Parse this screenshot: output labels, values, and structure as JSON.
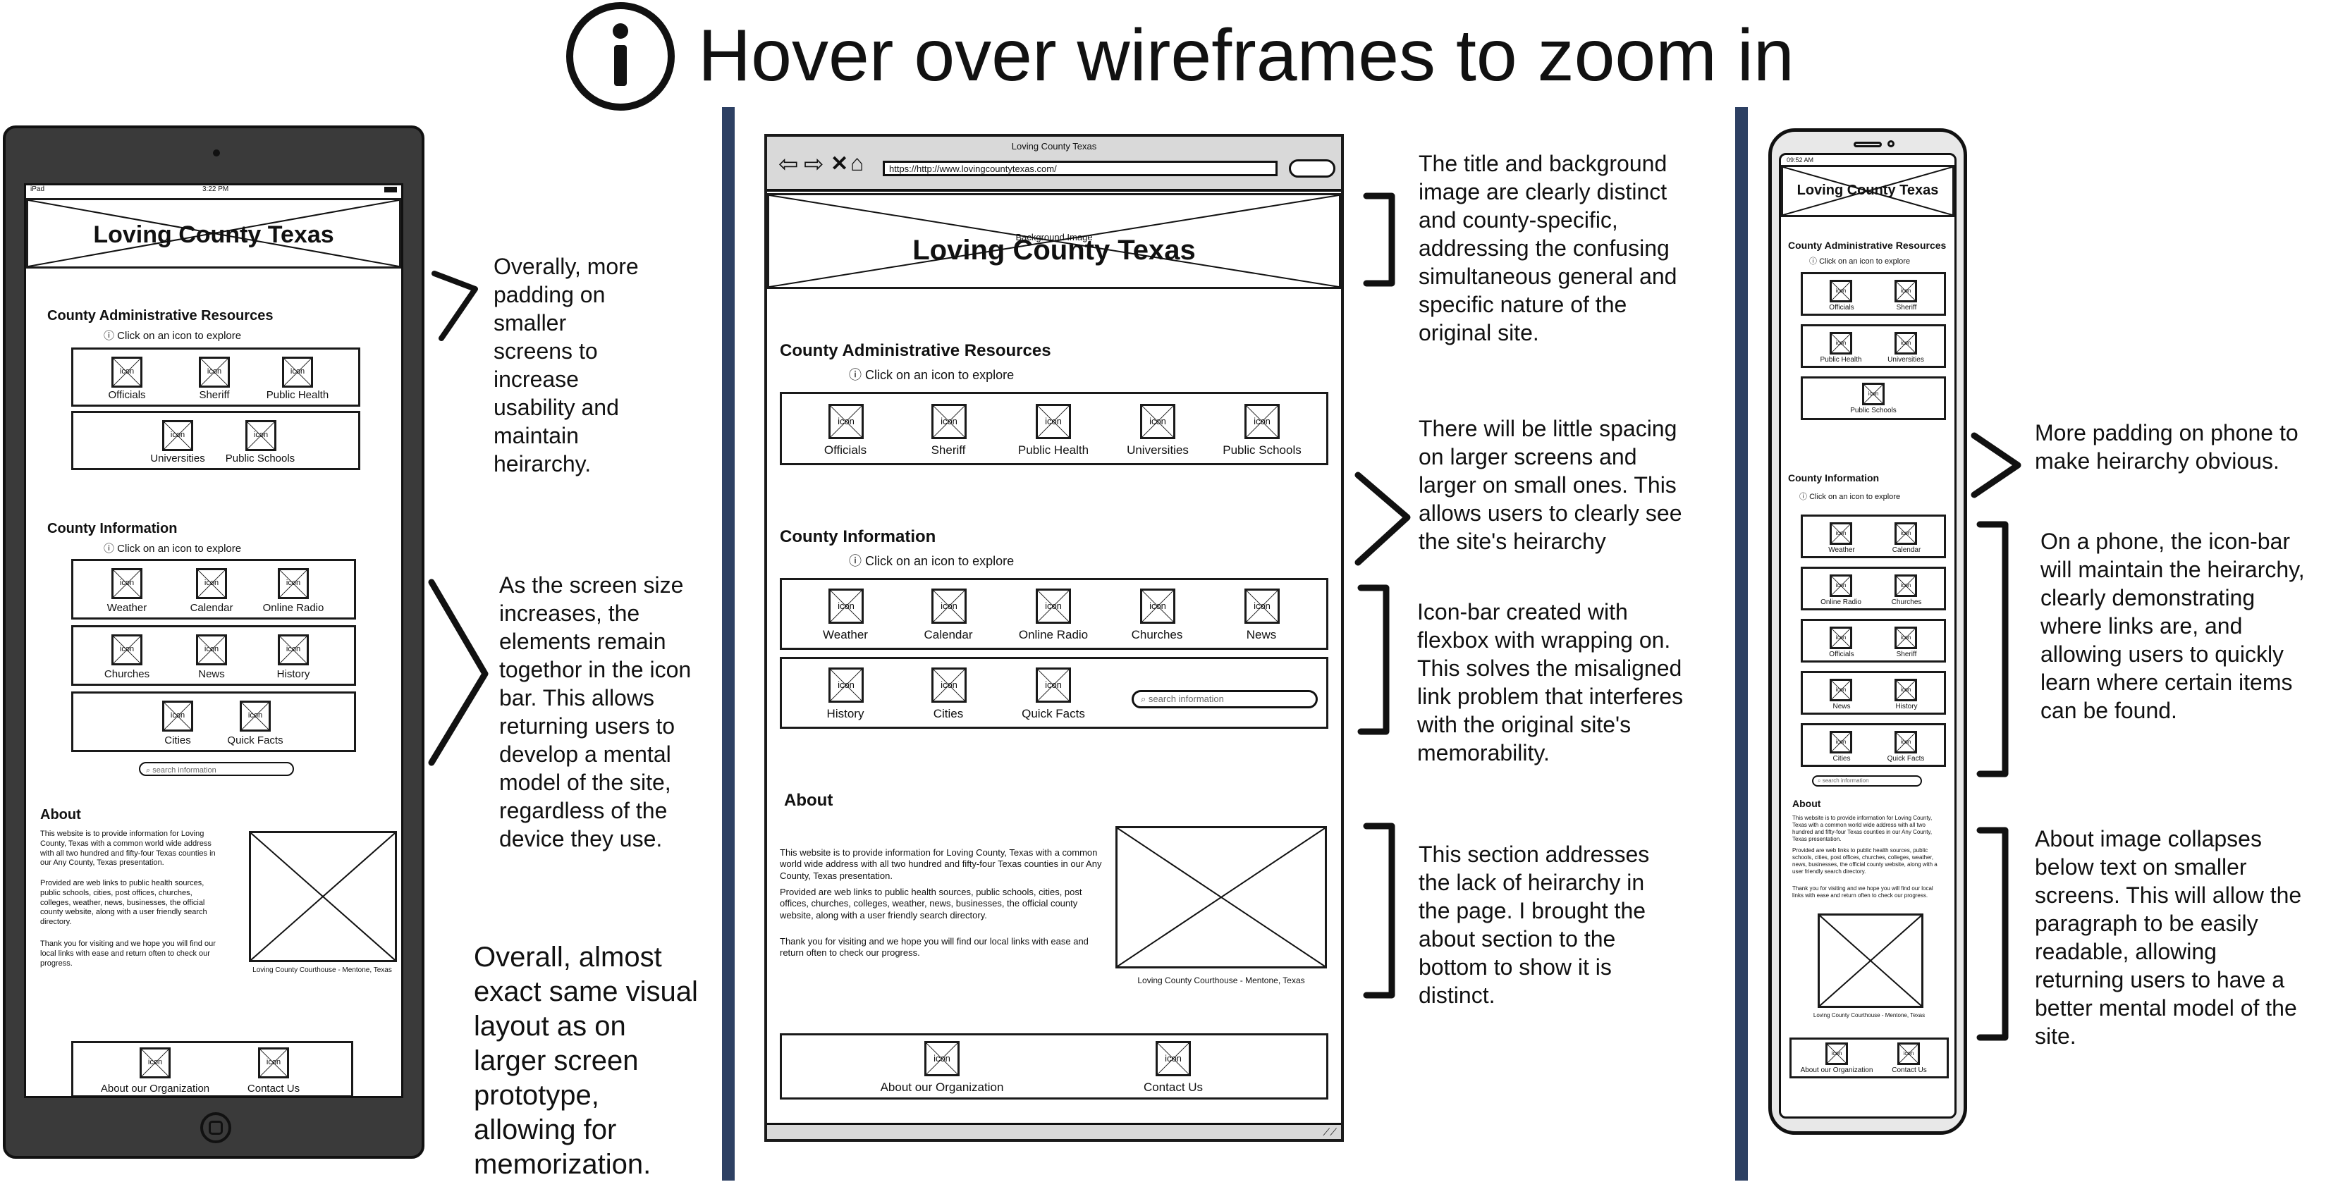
{
  "header": {
    "info_icon": "info-circle-icon",
    "title": "Hover over wireframes to zoom in"
  },
  "site": {
    "name": "Loving County Texas",
    "url": "https://http://www.lovingcountytexas.com/",
    "bg_image_label": "Background Image",
    "admin_title": "County Administrative Resources",
    "click_hint": "Click on an icon to explore",
    "info_title": "County Information",
    "about_title": "About",
    "search_placeholder": "search information",
    "icon_text": "icon",
    "admin_items": [
      "Officials",
      "Sheriff",
      "Public Health",
      "Universities",
      "Public Schools"
    ],
    "info_items": [
      "Weather",
      "Calendar",
      "Online Radio",
      "Churches",
      "News",
      "History",
      "Cities",
      "Quick Facts"
    ],
    "about_p1": "This website is to provide information for Loving County, Texas with a common  world wide address with all two hundred and fifty-four Texas counties in our  Any County, Texas presentation.",
    "about_p2": "Provided are web links to public health sources,  public schools, cities, post offices, churches,  colleges, weather, news, businesses, the official county website, along with a user friendly search  directory.",
    "about_p3": "Thank you for visiting and we hope you will find our local links with ease and return often to check our progress.",
    "image_caption": "Loving County Courthouse - Mentone, Texas",
    "footer_items": [
      "About our Organization",
      "Contact Us"
    ]
  },
  "tablet": {
    "status_left": "iPad",
    "status_time": "3:22 PM"
  },
  "phone": {
    "status_time": "09:52 AM"
  },
  "notes": {
    "tablet_padding": "Overally, more padding on smaller screens to increase usability and maintain heirarchy.",
    "tablet_iconbar": "As the screen size increases, the elements remain togethor in the icon bar. This allows returning users to develop a mental model of the site, regardless of the device they use.",
    "tablet_layout": "Overall, almost exact same visual layout as on larger screen prototype, allowing for memorization.",
    "desktop_title": "The title and background image are clearly distinct and county-specific, addressing the confusing simultaneous general and specific nature of the original site.",
    "desktop_spacing": "There will be little spacing on larger screens and larger on small ones. This allows users to clearly see the site's heirarchy",
    "desktop_iconbar": "Icon-bar created with flexbox with wrapping on. This solves the misaligned link problem that interferes with the original site's memorability.",
    "desktop_about": "This section addresses the lack of heirarchy in the page. I brought the about section to the bottom to show it is distinct.",
    "phone_padding": "More padding on phone to make heirarchy obvious.",
    "phone_iconbar": "On a phone, the icon-bar will maintain the heirarchy, clearly demonstrating where links are, and allowing users to quickly learn where certain items can be found.",
    "phone_about": "About image collapses below text on smaller screens. This will allow the paragraph to be easily readable, allowing returning users to have a better mental model of the site."
  },
  "colors": {
    "divider": "#2d4063",
    "device_body": "#3a3a3a",
    "browser_chrome": "#d9d9d9"
  }
}
